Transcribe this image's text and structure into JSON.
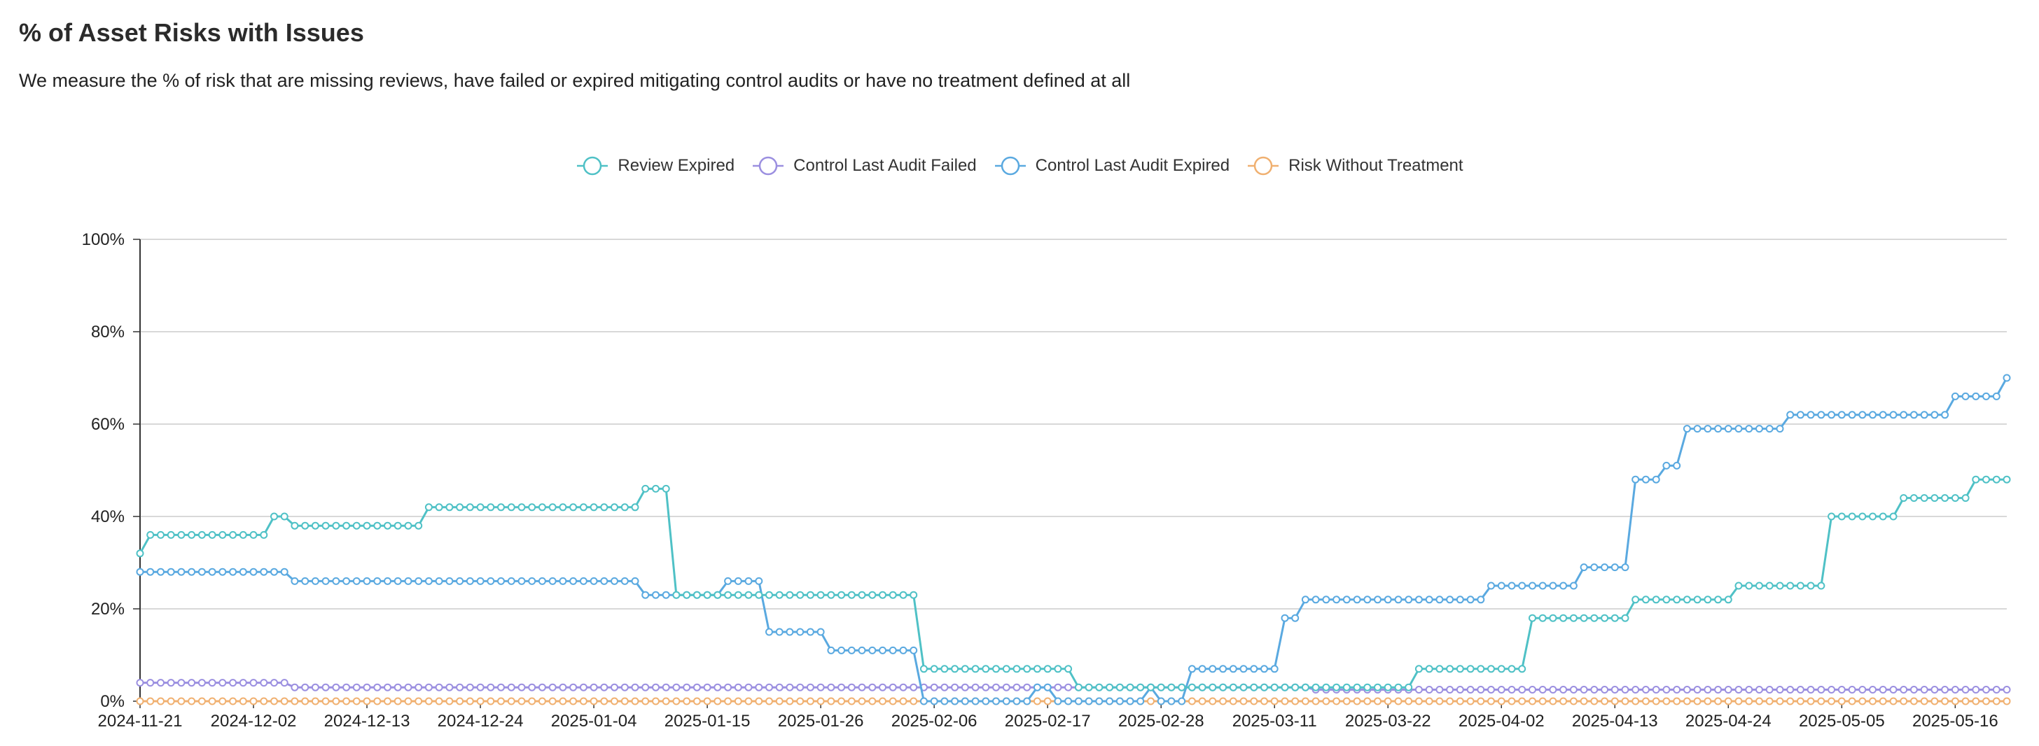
{
  "header": {
    "title": "% of Asset Risks with Issues",
    "subtitle": "We measure the % of risk that are missing reviews, have failed or expired mitigating control audits or have no treatment defined at all"
  },
  "chart_data": {
    "type": "line",
    "start_date": "2024-11-21",
    "end_date": "2025-05-21",
    "x_tick_labels": [
      "2024-11-21",
      "2024-12-02",
      "2024-12-13",
      "2024-12-24",
      "2025-01-04",
      "2025-01-15",
      "2025-01-26",
      "2025-02-06",
      "2025-02-17",
      "2025-02-28",
      "2025-03-11",
      "2025-03-22",
      "2025-04-02",
      "2025-04-13",
      "2025-04-24",
      "2025-05-05",
      "2025-05-16"
    ],
    "y_tick_labels": [
      "0%",
      "20%",
      "40%",
      "60%",
      "80%",
      "100%"
    ],
    "ylim": [
      0,
      100
    ],
    "grid": true,
    "legend_position": "top-center",
    "series": [
      {
        "name": "Review Expired",
        "color": "#4fc1c6",
        "steps": [
          [
            "2024-11-21",
            32
          ],
          [
            "2024-11-22",
            36
          ],
          [
            "2024-12-04",
            40
          ],
          [
            "2024-12-06",
            38
          ],
          [
            "2024-12-19",
            42
          ],
          [
            "2025-01-09",
            46
          ],
          [
            "2025-01-12",
            23
          ],
          [
            "2025-02-05",
            7
          ],
          [
            "2025-02-20",
            3
          ],
          [
            "2025-03-25",
            7
          ],
          [
            "2025-04-05",
            18
          ],
          [
            "2025-04-15",
            22
          ],
          [
            "2025-04-25",
            25
          ],
          [
            "2025-05-04",
            40
          ],
          [
            "2025-05-11",
            44
          ],
          [
            "2025-05-18",
            48
          ]
        ]
      },
      {
        "name": "Control Last Audit Failed",
        "color": "#9b8fe0",
        "steps": [
          [
            "2024-11-21",
            4
          ],
          [
            "2024-12-06",
            3
          ],
          [
            "2025-03-15",
            2.5
          ]
        ]
      },
      {
        "name": "Control Last Audit Expired",
        "color": "#5aa9e0",
        "steps": [
          [
            "2024-11-21",
            28
          ],
          [
            "2024-12-06",
            26
          ],
          [
            "2025-01-09",
            23
          ],
          [
            "2025-01-17",
            26
          ],
          [
            "2025-01-21",
            15
          ],
          [
            "2025-01-27",
            11
          ],
          [
            "2025-02-05",
            0
          ],
          [
            "2025-02-16",
            3
          ],
          [
            "2025-02-18",
            0
          ],
          [
            "2025-02-27",
            3
          ],
          [
            "2025-02-28",
            0
          ],
          [
            "2025-03-03",
            7
          ],
          [
            "2025-03-12",
            18
          ],
          [
            "2025-03-14",
            22
          ],
          [
            "2025-04-01",
            25
          ],
          [
            "2025-04-10",
            29
          ],
          [
            "2025-04-15",
            48
          ],
          [
            "2025-04-18",
            51
          ],
          [
            "2025-04-20",
            59
          ],
          [
            "2025-04-30",
            62
          ],
          [
            "2025-05-16",
            66
          ],
          [
            "2025-05-21",
            70
          ]
        ]
      },
      {
        "name": "Risk Without Treatment",
        "color": "#f0b070",
        "steps": [
          [
            "2024-11-21",
            0
          ]
        ]
      }
    ]
  }
}
